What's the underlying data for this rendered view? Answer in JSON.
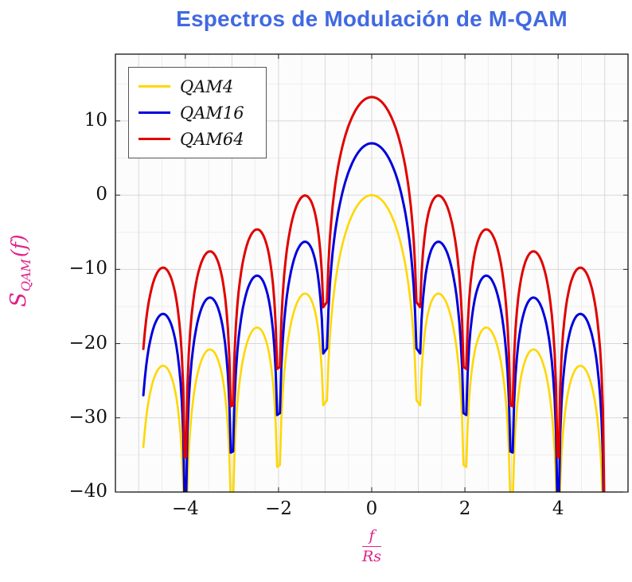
{
  "chart_data": {
    "type": "line",
    "title": "Espectros de Modulación de M-QAM",
    "title_color": "#4169E1",
    "xlabel": "f/Rs",
    "xlabel_parts": {
      "numerator": "f",
      "denominator": "Rs"
    },
    "ylabel": "S_QAM(f)",
    "ylabel_parts": {
      "base": "S",
      "subscript": "QAM",
      "argument": "(f)"
    },
    "axis_label_color": "#E0218A",
    "xlim": [
      -5.5,
      5.5
    ],
    "ylim": [
      -40,
      19
    ],
    "x_ticks": [
      {
        "value": -4,
        "label": "−4"
      },
      {
        "value": -2,
        "label": "−2"
      },
      {
        "value": 0,
        "label": "0"
      },
      {
        "value": 2,
        "label": "2"
      },
      {
        "value": 4,
        "label": "4"
      }
    ],
    "y_ticks": [
      {
        "value": -40,
        "label": "−40"
      },
      {
        "value": -30,
        "label": "−30"
      },
      {
        "value": -20,
        "label": "−20"
      },
      {
        "value": -10,
        "label": "−10"
      },
      {
        "value": 0,
        "label": "0"
      },
      {
        "value": 10,
        "label": "10"
      }
    ],
    "grid": "both",
    "legend_position": "top-left",
    "model": "S_M(f) = offset_db + 20*log10(|sin(pi*f)/(pi*f)|) dB, f in units of Rs",
    "series": [
      {
        "name": "QAM4",
        "color": "#FFD700",
        "offset_db": 0,
        "main_lobe_peak_db": 0
      },
      {
        "name": "QAM16",
        "color": "#0000DC",
        "offset_db": 6.99,
        "main_lobe_peak_db": 6.99
      },
      {
        "name": "QAM64",
        "color": "#E00000",
        "offset_db": 13.22,
        "main_lobe_peak_db": 13.22
      }
    ],
    "spectral_nulls_at_f_over_Rs": [
      -4,
      -3,
      -2,
      -1,
      1,
      2,
      3,
      4
    ],
    "sidelobe_peaks_rel_db": [
      -13.26,
      -17.83,
      -20.79,
      -22.99
    ],
    "sampling": {
      "step": 0.03,
      "segments": [
        [
          -4.9,
          -4.015
        ],
        [
          -3.985,
          -3.025
        ],
        [
          -2.975,
          -2.03
        ],
        [
          -1.97,
          -1.04
        ],
        [
          -0.96,
          0.96
        ],
        [
          1.04,
          1.97
        ],
        [
          2.03,
          2.975
        ],
        [
          3.025,
          3.985
        ],
        [
          4.015,
          4.99
        ]
      ]
    }
  }
}
